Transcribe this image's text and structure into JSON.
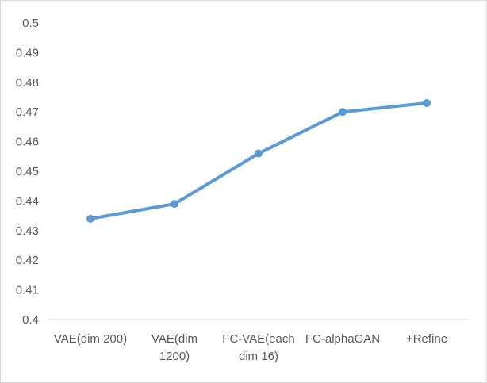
{
  "chart_data": {
    "type": "line",
    "title": "",
    "xlabel": "",
    "ylabel": "",
    "categories": [
      [
        "VAE(dim 200)"
      ],
      [
        "VAE(dim",
        "1200)"
      ],
      [
        "FC-VAE(each",
        "dim 16)"
      ],
      [
        "FC-alphaGAN"
      ],
      [
        "+Refine"
      ]
    ],
    "series": [
      {
        "values": [
          0.434,
          0.439,
          0.456,
          0.47,
          0.473
        ]
      }
    ],
    "ylim": [
      0.4,
      0.5
    ],
    "yticks": [
      "0.4",
      "0.41",
      "0.42",
      "0.43",
      "0.44",
      "0.45",
      "0.46",
      "0.47",
      "0.48",
      "0.49",
      "0.5"
    ],
    "grid": false,
    "legend": "none",
    "colors": {
      "line": "#5b9bd5",
      "axis": "#d9d9d9",
      "text": "#595959"
    }
  }
}
